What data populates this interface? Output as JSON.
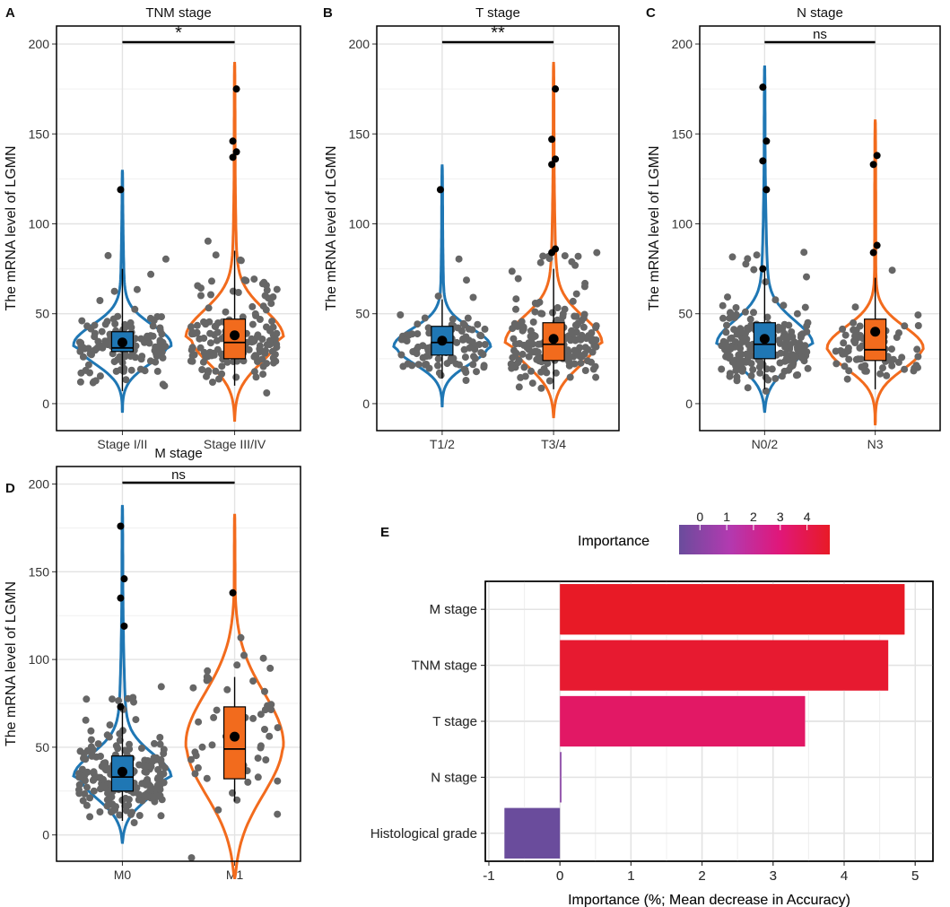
{
  "chart_data": [
    {
      "panel": "A",
      "type": "violin",
      "title": "TNM stage",
      "ylabel": "The mRNA level of LGMN",
      "categories": [
        "Stage I/II",
        "Stage III/IV"
      ],
      "yticks": [
        0,
        50,
        100,
        150,
        200
      ],
      "ylim": [
        -15,
        210
      ],
      "colors": [
        "#1f77b4",
        "#f26b1d"
      ],
      "significance": "*",
      "box": [
        {
          "q1": 29,
          "median": 31,
          "q3": 40,
          "lo": 7,
          "hi": 75,
          "mean": 34
        },
        {
          "q1": 25,
          "median": 34,
          "q3": 47,
          "lo": 10,
          "hi": 85,
          "mean": 38
        }
      ],
      "outliers": [
        [
          119
        ],
        [
          137,
          140,
          146,
          175
        ]
      ],
      "spread": [
        [
          -5,
          130,
          32,
          11,
          125
        ],
        [
          -10,
          190,
          36,
          15,
          175
        ]
      ]
    },
    {
      "panel": "B",
      "type": "violin",
      "title": "T stage",
      "ylabel": "The mRNA level of LGMN",
      "categories": [
        "T1/2",
        "T3/4"
      ],
      "yticks": [
        0,
        50,
        100,
        150,
        200
      ],
      "ylim": [
        -15,
        210
      ],
      "colors": [
        "#1f77b4",
        "#f26b1d"
      ],
      "significance": "**",
      "box": [
        {
          "q1": 27,
          "median": 34,
          "q3": 43,
          "lo": 14,
          "hi": 58,
          "mean": 35
        },
        {
          "q1": 24,
          "median": 33,
          "q3": 45,
          "lo": 8,
          "hi": 75,
          "mean": 36
        }
      ],
      "outliers": [
        [
          119
        ],
        [
          84,
          86,
          133,
          136,
          147,
          175
        ]
      ],
      "spread": [
        [
          -2,
          133,
          31,
          10,
          90
        ],
        [
          -8,
          190,
          33,
          14,
          210
        ]
      ]
    },
    {
      "panel": "C",
      "type": "violin",
      "title": "N stage",
      "ylabel": "The mRNA level of LGMN",
      "categories": [
        "N0/2",
        "N3"
      ],
      "yticks": [
        0,
        50,
        100,
        150,
        200
      ],
      "ylim": [
        -15,
        210
      ],
      "colors": [
        "#1f77b4",
        "#f26b1d"
      ],
      "significance": "ns",
      "box": [
        {
          "q1": 25,
          "median": 33,
          "q3": 45,
          "lo": 8,
          "hi": 75,
          "mean": 36
        },
        {
          "q1": 24,
          "median": 30,
          "q3": 47,
          "lo": 8,
          "hi": 70,
          "mean": 40
        }
      ],
      "outliers": [
        [
          75,
          119,
          135,
          146,
          176
        ],
        [
          84,
          88,
          133,
          138
        ]
      ],
      "spread": [
        [
          -5,
          188,
          32,
          13,
          230
        ],
        [
          -12,
          158,
          30,
          12,
          50
        ]
      ]
    },
    {
      "panel": "D",
      "type": "violin",
      "title": "M stage",
      "ylabel": "The mRNA level of LGMN",
      "categories": [
        "M0",
        "M1"
      ],
      "yticks": [
        0,
        50,
        100,
        150,
        200
      ],
      "ylim": [
        -15,
        210
      ],
      "colors": [
        "#1f77b4",
        "#f26b1d"
      ],
      "significance": "ns",
      "box": [
        {
          "q1": 25,
          "median": 33,
          "q3": 45,
          "lo": 8,
          "hi": 75,
          "mean": 36
        },
        {
          "q1": 32,
          "median": 49,
          "q3": 73,
          "lo": 19,
          "hi": 90,
          "mean": 56
        }
      ],
      "outliers": [
        [
          73,
          119,
          135,
          146,
          176
        ],
        [
          138
        ]
      ],
      "spread": [
        [
          -5,
          188,
          32,
          13,
          240
        ],
        [
          -25,
          183,
          50,
          30,
          22
        ]
      ]
    },
    {
      "panel": "E",
      "type": "bar",
      "orientation": "horizontal",
      "categories": [
        "M stage",
        "TNM stage",
        "T stage",
        "N stage",
        "Histological grade"
      ],
      "values": [
        4.85,
        4.62,
        3.45,
        0.02,
        -0.78
      ],
      "xlabel": "Importance (%; Mean decrease in Accuracy)",
      "xticks": [
        -1,
        0,
        1,
        2,
        3,
        4,
        5
      ],
      "xlim": [
        -1.05,
        5.25
      ],
      "legend": {
        "title": "Importance",
        "ticks": [
          0,
          1,
          2,
          3,
          4
        ],
        "range": [
          -0.78,
          4.85
        ],
        "colors": [
          "#6a4c9c",
          "#b23ab0",
          "#e0177a",
          "#e81a26"
        ]
      }
    }
  ]
}
